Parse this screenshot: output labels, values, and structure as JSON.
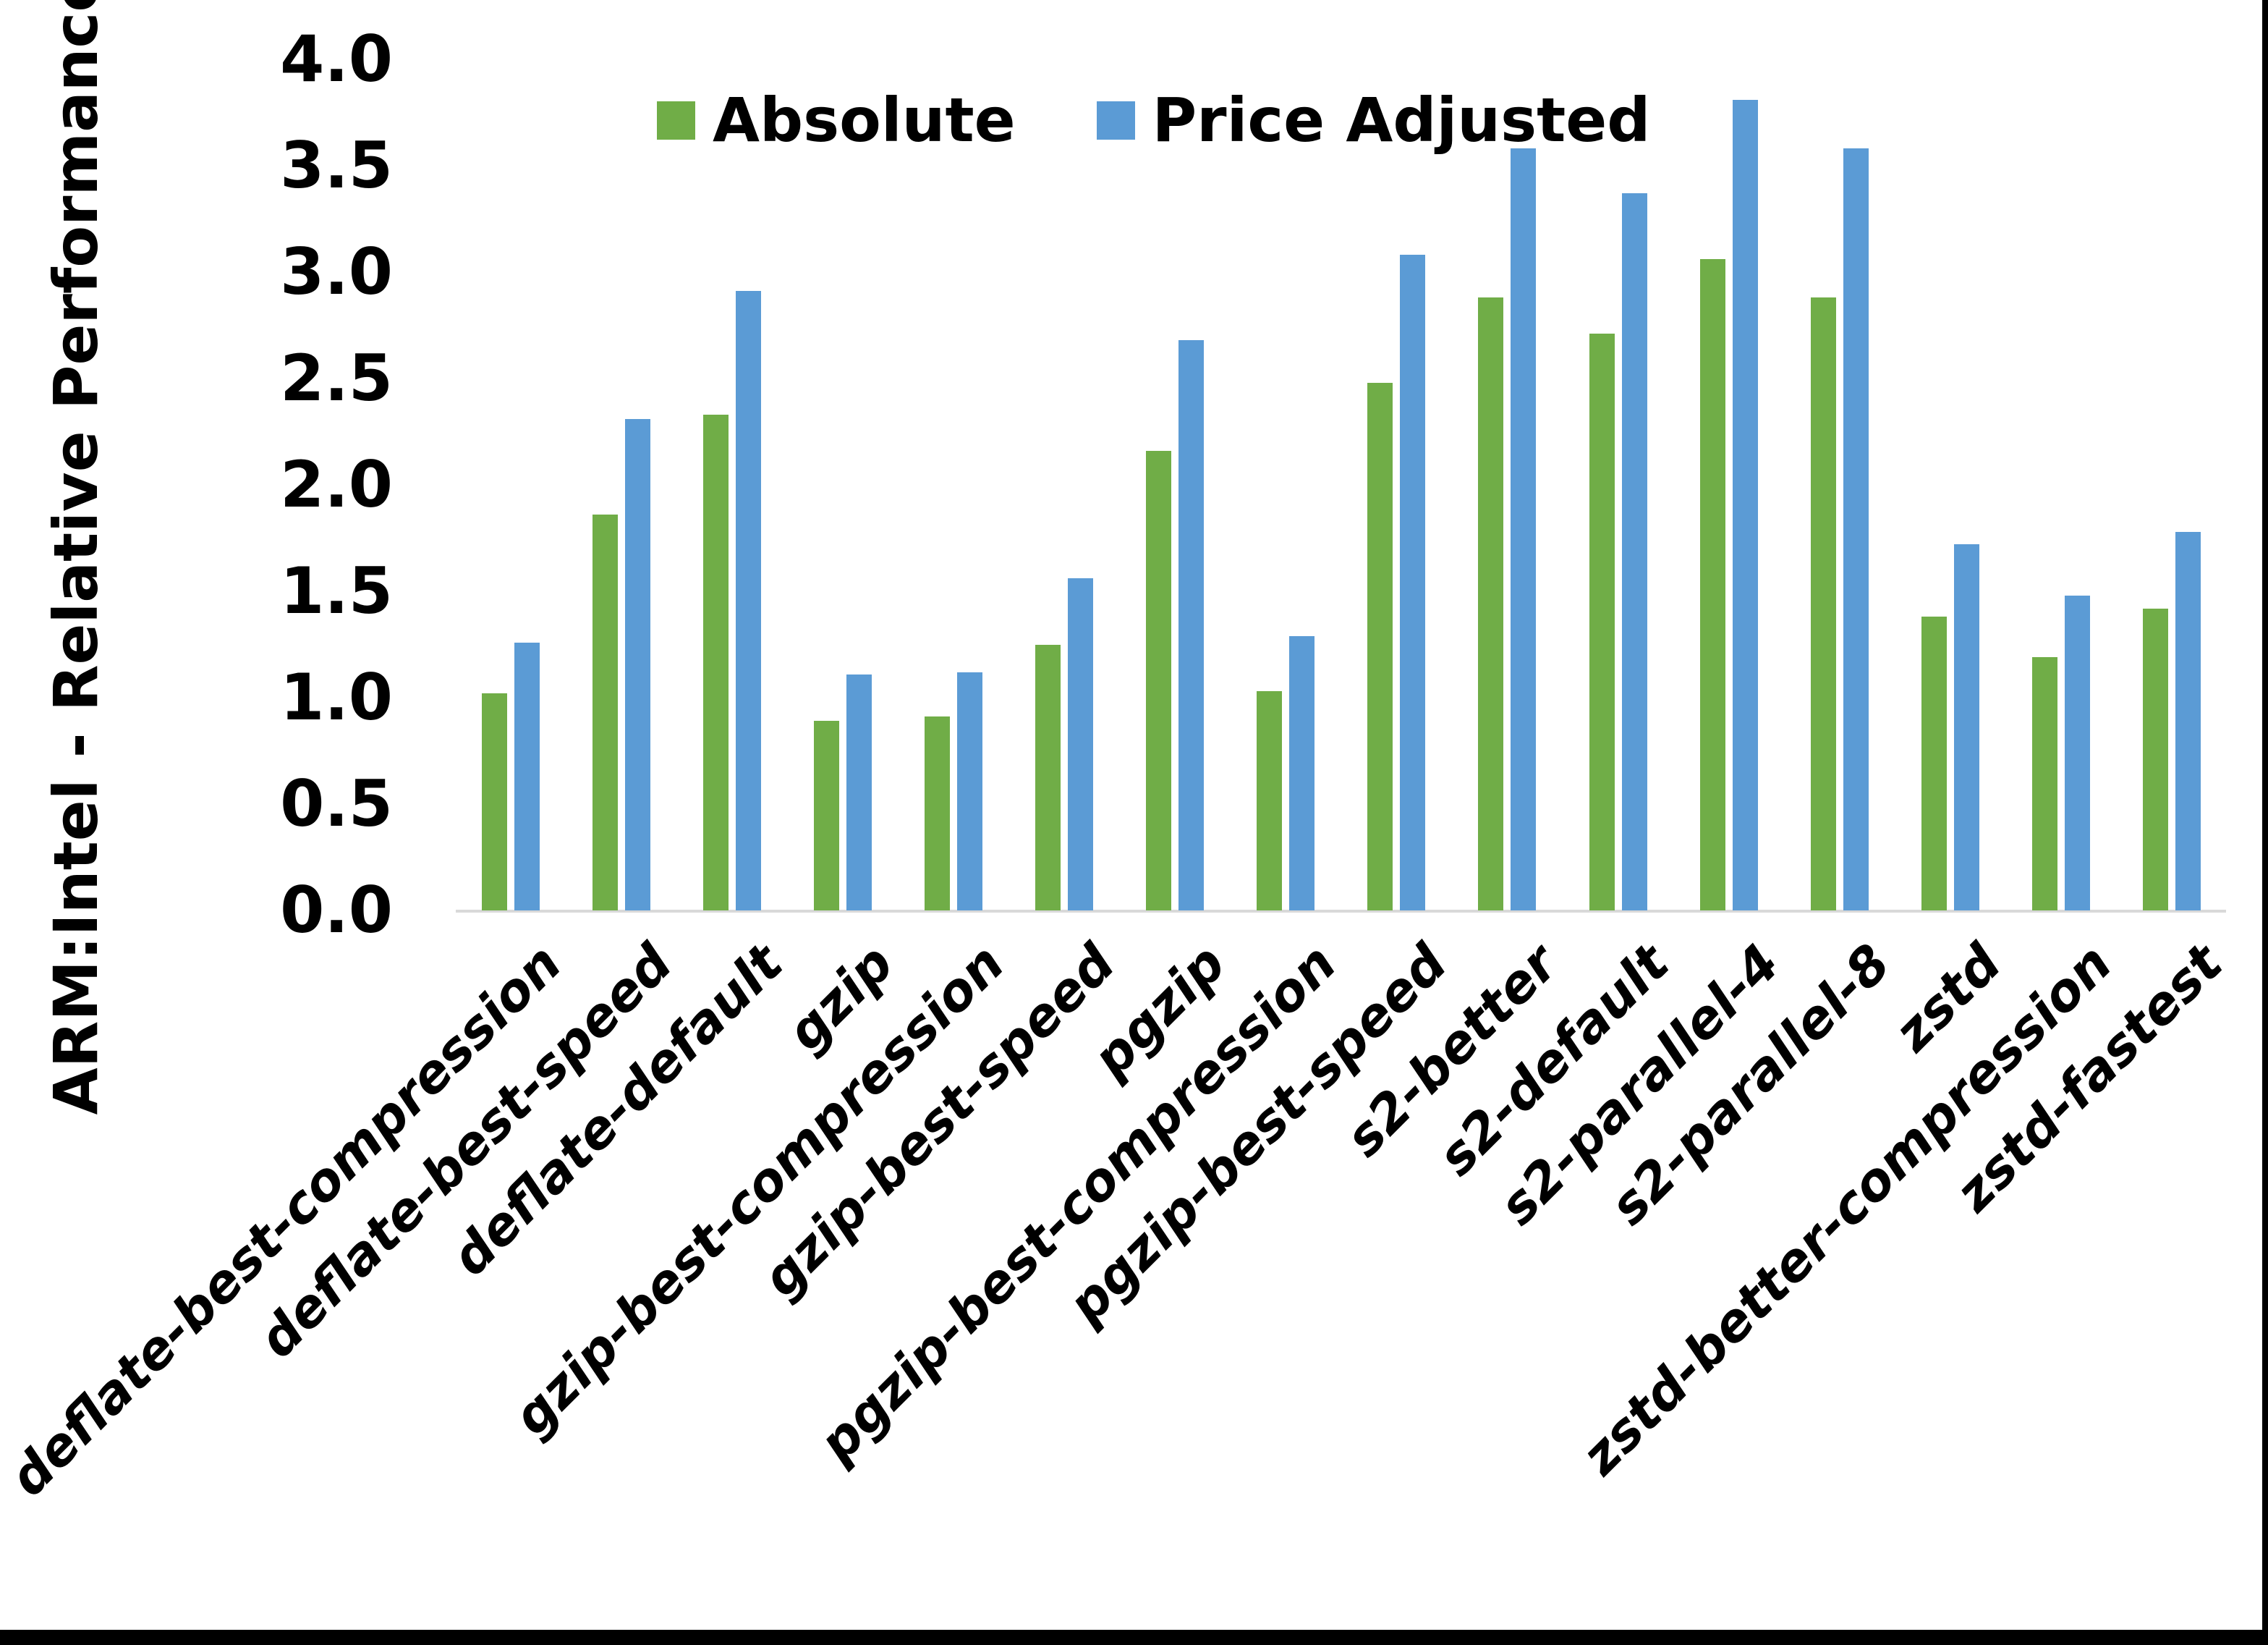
{
  "chart_data": {
    "type": "bar",
    "title": "",
    "y_axis": {
      "title": "ARM:Intel - Relative Performance",
      "min": 0.0,
      "max": 4.0,
      "tick_step": 0.5,
      "tick_labels": [
        "0.0",
        "0.5",
        "1.0",
        "1.5",
        "2.0",
        "2.5",
        "3.0",
        "3.5",
        "4.0"
      ]
    },
    "categories": [
      "deflate-best-compression",
      "deflate-best-speed",
      "deflate-default",
      "gzip",
      "gzip-best-compression",
      "gzip-best-speed",
      "pgzip",
      "pgzip-best-compression",
      "pgzip-best-speed",
      "s2-better",
      "s2-default",
      "s2-parallel-4",
      "s2-parallel-8",
      "zstd",
      "zstd-better-compression",
      "zstd-fastest"
    ],
    "series": [
      {
        "name": "Absolute",
        "color": "#70AD47",
        "values": [
          1.02,
          1.86,
          2.33,
          0.89,
          0.91,
          1.25,
          2.16,
          1.03,
          2.48,
          2.88,
          2.71,
          3.06,
          2.88,
          1.38,
          1.19,
          1.42
        ]
      },
      {
        "name": "Price Adjusted",
        "color": "#5B9BD5",
        "values": [
          1.26,
          2.31,
          2.91,
          1.11,
          1.12,
          1.56,
          2.68,
          1.29,
          3.08,
          3.58,
          3.37,
          3.81,
          3.58,
          1.72,
          1.48,
          1.78
        ]
      }
    ],
    "legend_position": "top",
    "grid": "off",
    "axis_line_color": "#D9D9D9",
    "text_color": "#000000"
  }
}
